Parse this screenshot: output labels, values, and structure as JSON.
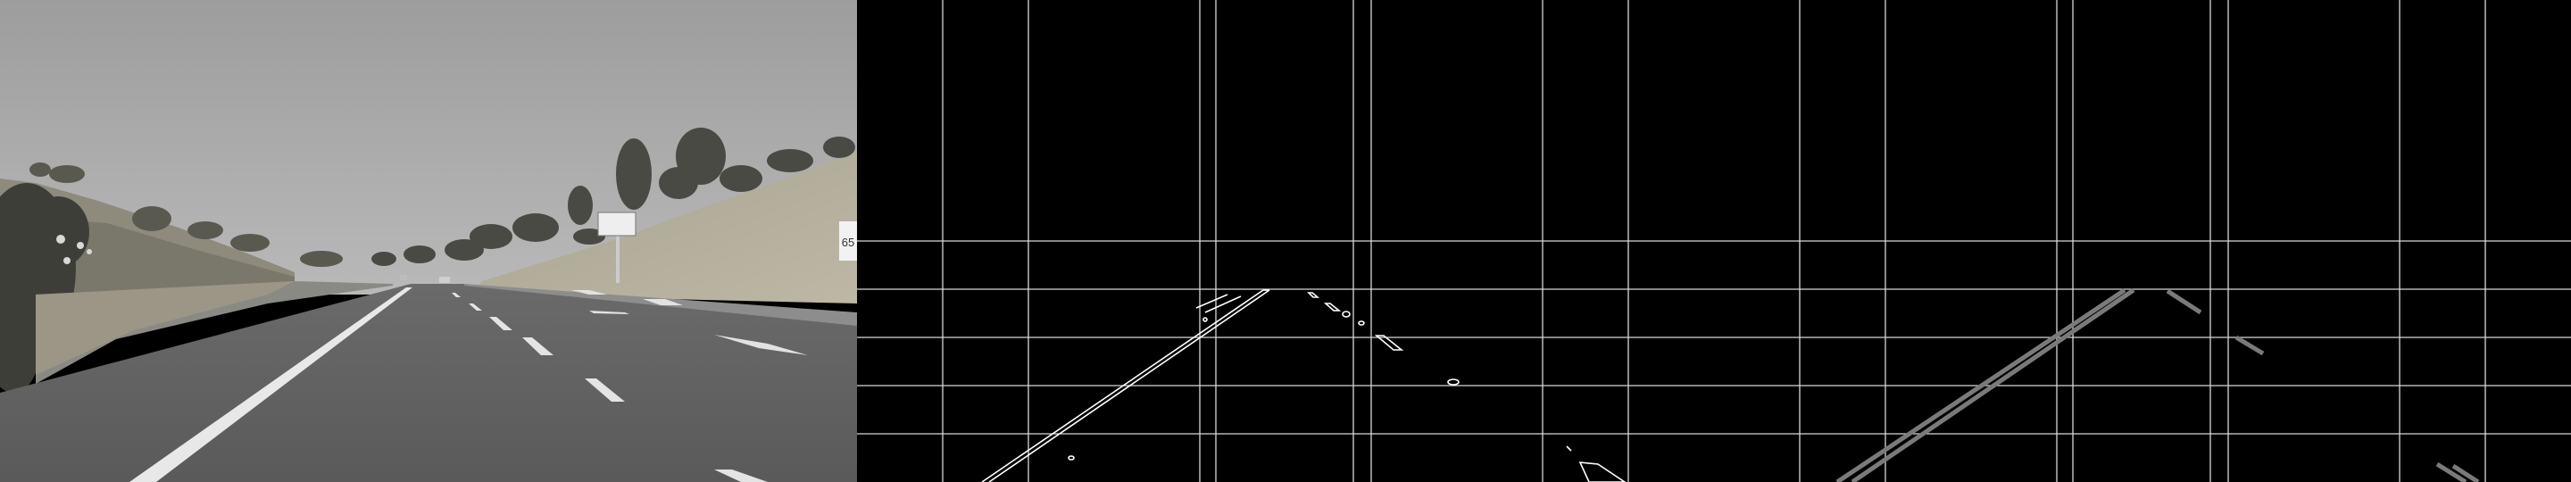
{
  "panels": [
    {
      "id": "grayscale-road-photo",
      "kind": "photo"
    },
    {
      "id": "canny-edges-with-grid",
      "kind": "edge-map"
    },
    {
      "id": "hough-lane-lines-with-grid",
      "kind": "line-map"
    }
  ],
  "sign": {
    "speed_limit": "65"
  },
  "colors": {
    "sky": "#a3a3a3",
    "hill": "#a29d8a",
    "road": "#5e5e5e",
    "lane_marking": "#e8e8e8",
    "edge_stroke": "#ffffff",
    "grid_stroke": "#d8d8d8",
    "lane_line": "#7a7a7a"
  }
}
